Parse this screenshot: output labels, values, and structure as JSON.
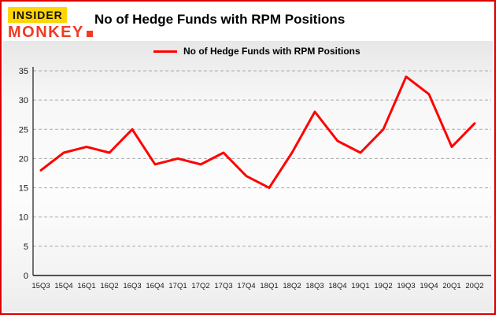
{
  "logo": {
    "line1": "INSIDER",
    "line2": "MONKEY"
  },
  "header": {
    "title": "No of Hedge Funds with RPM Positions"
  },
  "legend": {
    "label": "No of Hedge Funds with RPM Positions"
  },
  "colors": {
    "accent": "#ff0000",
    "border": "#dd0000",
    "logo_yellow": "#ffd502",
    "logo_red": "#f13a26",
    "gridline": "#aaaaaa",
    "axis": "#1a1a1a"
  },
  "chart_data": {
    "type": "line",
    "title": "No of Hedge Funds with RPM Positions",
    "xlabel": "",
    "ylabel": "",
    "categories": [
      "15Q3",
      "15Q4",
      "16Q1",
      "16Q2",
      "16Q3",
      "16Q4",
      "17Q1",
      "17Q2",
      "17Q3",
      "17Q4",
      "18Q1",
      "18Q2",
      "18Q3",
      "18Q4",
      "19Q1",
      "19Q2",
      "19Q3",
      "19Q4",
      "20Q1",
      "20Q2"
    ],
    "values": [
      18,
      21,
      22,
      21,
      25,
      19,
      20,
      19,
      21,
      17,
      15,
      21,
      28,
      23,
      21,
      25,
      34,
      31,
      22,
      26
    ],
    "ylim": [
      0,
      35
    ],
    "yticks": [
      0,
      5,
      10,
      15,
      20,
      25,
      30,
      35
    ],
    "grid": true,
    "grid_style": "dashed",
    "line_color": "#ff0000",
    "legend_position": "top-left",
    "series_name": "No of Hedge Funds with RPM Positions"
  }
}
